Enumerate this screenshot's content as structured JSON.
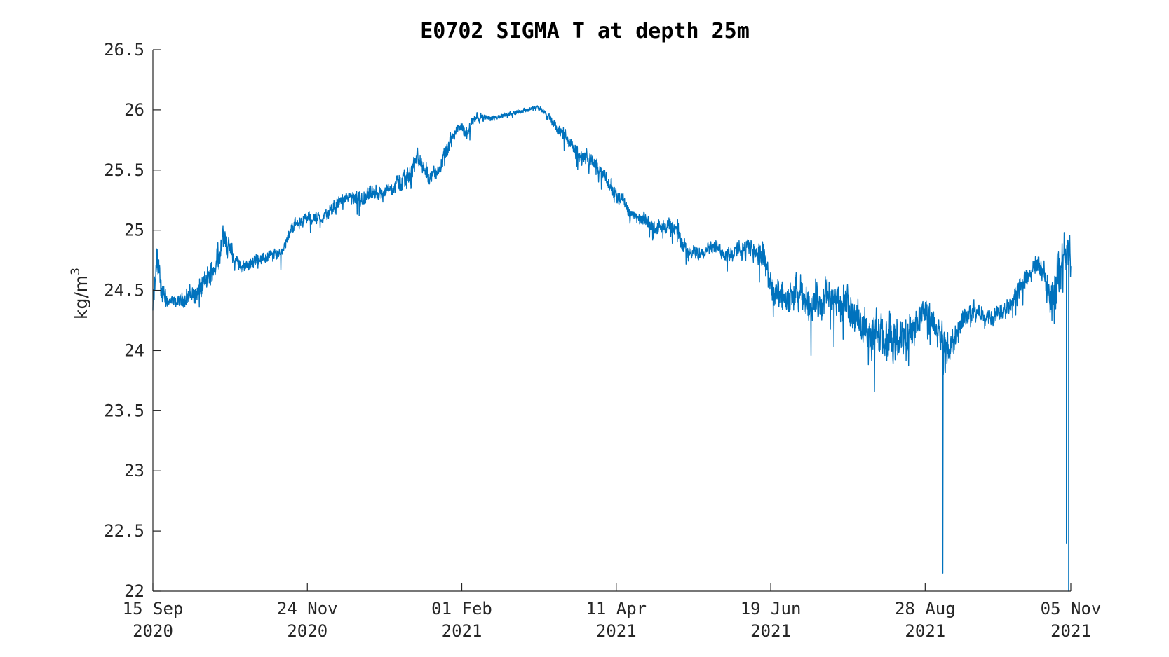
{
  "chart_data": {
    "type": "line",
    "title": "E0702 SIGMA T at depth 25m",
    "xlabel": "",
    "ylabel": "kg/m",
    "ylabel_superscript": "3",
    "ylim": [
      22,
      26.5
    ],
    "xlim": [
      "2020-09-15",
      "2021-11-05"
    ],
    "yticks": [
      "22",
      "22.5",
      "23",
      "23.5",
      "24",
      "24.5",
      "25",
      "25.5",
      "26",
      "26.5"
    ],
    "xticks": [
      {
        "line1": "15 Sep",
        "line2": "2020"
      },
      {
        "line1": "24 Nov",
        "line2": "2020"
      },
      {
        "line1": "01 Feb",
        "line2": "2021"
      },
      {
        "line1": "11 Apr",
        "line2": "2021"
      },
      {
        "line1": "19 Jun",
        "line2": "2021"
      },
      {
        "line1": "28 Aug",
        "line2": "2021"
      },
      {
        "line1": "05 Nov",
        "line2": "2021"
      }
    ],
    "grid": false,
    "series": [
      {
        "color": "#0072BD",
        "x": [
          "2020-09-15",
          "2020-09-17",
          "2020-09-19",
          "2020-09-22",
          "2020-09-26",
          "2020-10-01",
          "2020-10-06",
          "2020-10-10",
          "2020-10-13",
          "2020-10-17",
          "2020-10-22",
          "2020-10-27",
          "2020-11-01",
          "2020-11-06",
          "2020-11-12",
          "2020-11-18",
          "2020-11-24",
          "2020-11-30",
          "2020-12-05",
          "2020-12-09",
          "2020-12-13",
          "2020-12-18",
          "2020-12-23",
          "2020-12-28",
          "2021-01-01",
          "2021-01-05",
          "2021-01-09",
          "2021-01-13",
          "2021-01-18",
          "2021-01-23",
          "2021-01-28",
          "2021-02-01",
          "2021-02-04",
          "2021-02-08",
          "2021-02-14",
          "2021-02-20",
          "2021-02-26",
          "2021-03-03",
          "2021-03-08",
          "2021-03-12",
          "2021-03-17",
          "2021-03-22",
          "2021-03-27",
          "2021-04-01",
          "2021-04-06",
          "2021-04-11",
          "2021-04-16",
          "2021-04-21",
          "2021-04-26",
          "2021-05-01",
          "2021-05-06",
          "2021-05-11",
          "2021-05-16",
          "2021-05-21",
          "2021-05-26",
          "2021-05-31",
          "2021-06-04",
          "2021-06-09",
          "2021-06-14",
          "2021-06-19",
          "2021-06-24",
          "2021-06-28",
          "2021-07-02",
          "2021-07-07",
          "2021-07-12",
          "2021-07-17",
          "2021-07-22",
          "2021-07-27",
          "2021-08-01",
          "2021-08-06",
          "2021-08-11",
          "2021-08-16",
          "2021-08-21",
          "2021-08-26",
          "2021-08-31",
          "2021-09-04",
          "2021-09-08",
          "2021-09-12",
          "2021-09-16",
          "2021-09-21",
          "2021-09-26",
          "2021-10-01",
          "2021-10-06",
          "2021-10-11",
          "2021-10-16",
          "2021-10-20",
          "2021-10-24",
          "2021-10-28",
          "2021-11-01",
          "2021-11-04",
          "2021-11-05"
        ],
        "y": [
          24.35,
          24.75,
          24.5,
          24.4,
          24.4,
          24.45,
          24.5,
          24.6,
          24.7,
          24.95,
          24.75,
          24.7,
          24.75,
          24.78,
          24.82,
          25.05,
          25.1,
          25.1,
          25.15,
          25.25,
          25.28,
          25.22,
          25.3,
          25.3,
          25.35,
          25.4,
          25.45,
          25.6,
          25.45,
          25.5,
          25.75,
          25.85,
          25.8,
          25.95,
          25.93,
          25.95,
          25.98,
          26.0,
          26.02,
          25.97,
          25.85,
          25.75,
          25.62,
          25.6,
          25.48,
          25.35,
          25.25,
          25.1,
          25.08,
          25.02,
          25.05,
          24.98,
          24.8,
          24.82,
          24.88,
          24.82,
          24.8,
          24.85,
          24.85,
          24.75,
          24.45,
          24.4,
          24.45,
          24.42,
          24.4,
          24.45,
          24.4,
          24.35,
          24.25,
          24.18,
          24.1,
          24.05,
          24.1,
          24.2,
          24.35,
          24.2,
          24.1,
          24.0,
          24.25,
          24.3,
          24.3,
          24.3,
          24.35,
          24.45,
          24.6,
          24.7,
          24.65,
          24.4,
          24.75,
          24.8,
          24.8
        ],
        "noise": [
          0.12,
          0.2,
          0.1,
          0.05,
          0.05,
          0.08,
          0.1,
          0.1,
          0.1,
          0.12,
          0.06,
          0.05,
          0.05,
          0.05,
          0.05,
          0.05,
          0.05,
          0.05,
          0.06,
          0.06,
          0.05,
          0.08,
          0.06,
          0.06,
          0.06,
          0.08,
          0.1,
          0.08,
          0.08,
          0.06,
          0.06,
          0.05,
          0.06,
          0.04,
          0.02,
          0.02,
          0.02,
          0.02,
          0.02,
          0.03,
          0.05,
          0.06,
          0.07,
          0.07,
          0.06,
          0.06,
          0.06,
          0.06,
          0.06,
          0.06,
          0.06,
          0.08,
          0.06,
          0.06,
          0.06,
          0.06,
          0.06,
          0.08,
          0.1,
          0.12,
          0.15,
          0.15,
          0.15,
          0.15,
          0.15,
          0.15,
          0.15,
          0.15,
          0.15,
          0.18,
          0.18,
          0.18,
          0.18,
          0.15,
          0.12,
          0.12,
          0.12,
          0.12,
          0.1,
          0.1,
          0.08,
          0.08,
          0.08,
          0.08,
          0.1,
          0.1,
          0.1,
          0.2,
          0.2,
          0.2,
          0.2
        ],
        "spikes": [
          {
            "x": "2021-09-08",
            "y": 22.15
          },
          {
            "x": "2021-11-03",
            "y": 22.4
          },
          {
            "x": "2021-11-04",
            "y": 22.0
          },
          {
            "x": "2021-11-04",
            "y": 22.25
          }
        ]
      }
    ]
  }
}
